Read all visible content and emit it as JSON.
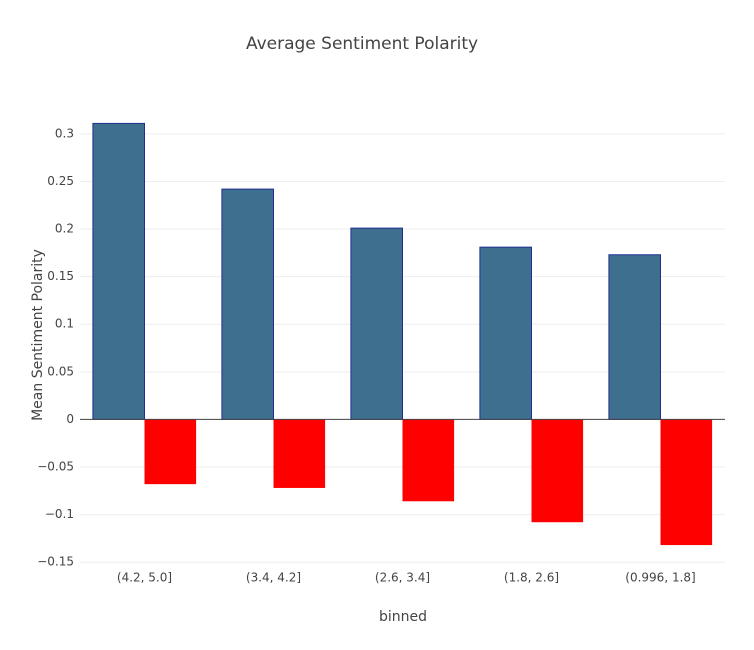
{
  "chart_data": {
    "type": "bar",
    "title": "Average Sentiment Polarity",
    "x_label": "binned",
    "y_label": "Mean Sentiment Polarity",
    "categories": [
      "(4.2, 5.0]",
      "(3.4, 4.2]",
      "(2.6, 3.4]",
      "(1.8, 2.6]",
      "(0.996, 1.8]"
    ],
    "series": [
      {
        "color": "#3f6f8f",
        "values": [
          0.311,
          0.242,
          0.201,
          0.181,
          0.173
        ]
      },
      {
        "color": "#ff0000",
        "values": [
          -0.068,
          -0.072,
          -0.086,
          -0.108,
          -0.132
        ]
      }
    ],
    "ylim": [
      -0.154,
      0.323
    ],
    "yticks": [
      {
        "value": -0.15,
        "label": "−0.15"
      },
      {
        "value": -0.1,
        "label": "−0.1"
      },
      {
        "value": -0.05,
        "label": "−0.05"
      },
      0,
      0.05,
      0.1,
      0.15,
      0.2,
      0.25,
      0.3
    ],
    "grid": true
  }
}
